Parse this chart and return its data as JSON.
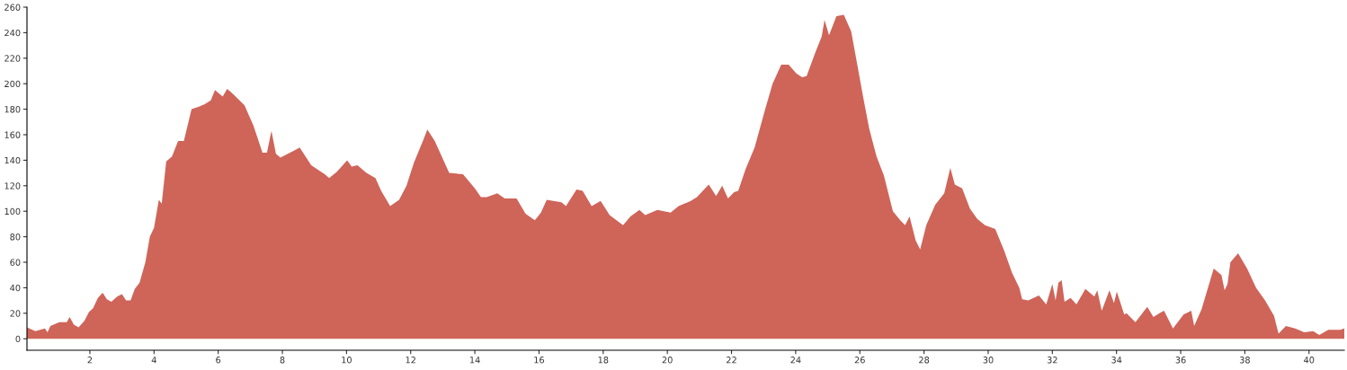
{
  "chart_data": {
    "type": "area",
    "xlim": [
      0.04,
      41.1
    ],
    "ylim": [
      -9,
      260
    ],
    "xticks": [
      2,
      4,
      6,
      8,
      10,
      12,
      14,
      16,
      18,
      20,
      22,
      24,
      26,
      28,
      30,
      32,
      34,
      36,
      38,
      40
    ],
    "yticks": [
      0,
      20,
      40,
      60,
      80,
      100,
      120,
      140,
      160,
      180,
      200,
      220,
      240,
      260
    ],
    "grid": false,
    "series": [
      {
        "color": "#cf6459",
        "x": [
          0.04,
          0.3,
          0.6,
          0.68,
          0.77,
          1.05,
          1.28,
          1.37,
          1.5,
          1.65,
          1.83,
          1.97,
          2.1,
          2.25,
          2.4,
          2.53,
          2.67,
          2.85,
          3.0,
          3.13,
          3.27,
          3.4,
          3.55,
          3.73,
          3.87,
          4.0,
          4.15,
          4.24,
          4.38,
          4.56,
          4.75,
          4.93,
          5.17,
          5.4,
          5.58,
          5.77,
          5.9,
          6.14,
          6.28,
          6.5,
          6.82,
          7.1,
          7.38,
          7.52,
          7.66,
          7.8,
          7.94,
          8.4,
          8.54,
          8.9,
          9.32,
          9.46,
          9.7,
          10.02,
          10.16,
          10.34,
          10.62,
          10.9,
          11.08,
          11.36,
          11.64,
          11.87,
          12.1,
          12.38,
          12.52,
          12.75,
          13.2,
          13.63,
          14.0,
          14.19,
          14.37,
          14.7,
          14.93,
          15.3,
          15.58,
          15.87,
          16.06,
          16.24,
          16.7,
          16.84,
          17.17,
          17.36,
          17.64,
          17.92,
          18.2,
          18.62,
          18.85,
          19.13,
          19.31,
          19.69,
          20.1,
          20.35,
          20.73,
          20.92,
          21.29,
          21.52,
          21.71,
          21.89,
          22.08,
          22.21,
          22.44,
          22.72,
          23.05,
          23.28,
          23.55,
          23.78,
          24.02,
          24.2,
          24.34,
          24.62,
          24.81,
          24.9,
          25.04,
          25.27,
          25.5,
          25.73,
          25.92,
          26.1,
          26.29,
          26.52,
          26.75,
          27.03,
          27.26,
          27.41,
          27.55,
          27.74,
          27.88,
          28.07,
          28.35,
          28.63,
          28.82,
          28.96,
          29.19,
          29.43,
          29.66,
          29.9,
          30.22,
          30.5,
          30.74,
          30.97,
          31.06,
          31.25,
          31.58,
          31.81,
          32.0,
          32.1,
          32.19,
          32.29,
          32.38,
          32.57,
          32.75,
          33.03,
          33.31,
          33.4,
          33.54,
          33.78,
          33.92,
          34.01,
          34.24,
          34.31,
          34.59,
          34.96,
          35.15,
          35.34,
          35.48,
          35.76,
          36.09,
          36.33,
          36.42,
          36.65,
          37.03,
          37.27,
          37.37,
          37.46,
          37.55,
          37.79,
          38.07,
          38.35,
          38.63,
          38.91,
          39.05,
          39.28,
          39.57,
          39.85,
          40.13,
          40.32,
          40.6,
          40.97,
          41.1
        ],
        "values": [
          9,
          6,
          8,
          5,
          10,
          13,
          13,
          17,
          11,
          9,
          14,
          21,
          24,
          32,
          36,
          31,
          29,
          33,
          35,
          30,
          30,
          39,
          44,
          60,
          80,
          87,
          109,
          106,
          139,
          143,
          155,
          155,
          180,
          182,
          184,
          187,
          195,
          190,
          196,
          191,
          183,
          167,
          146,
          146,
          163,
          145,
          142,
          148,
          150,
          136,
          129,
          126,
          131,
          140,
          135,
          136,
          130,
          126,
          116,
          104,
          109,
          120,
          138,
          155,
          164,
          155,
          130,
          129,
          118,
          111,
          111,
          114,
          110,
          110,
          98,
          93,
          99,
          109,
          107,
          104,
          117,
          116,
          104,
          108,
          97,
          89,
          96,
          101,
          97,
          101,
          99,
          104,
          108,
          111,
          121,
          112,
          120,
          110,
          115,
          116,
          133,
          150,
          180,
          200,
          215,
          215,
          208,
          205,
          206,
          225,
          237,
          250,
          238,
          253,
          254,
          241,
          215,
          190,
          165,
          143,
          128,
          100,
          93,
          89,
          96,
          77,
          70,
          89,
          105,
          114,
          134,
          121,
          118,
          102,
          94,
          89,
          86,
          69,
          52,
          40,
          31,
          30,
          34,
          27,
          43,
          30,
          44,
          46,
          29,
          32,
          27,
          39,
          33,
          38,
          22,
          38,
          28,
          37,
          19,
          20,
          13,
          25,
          17,
          20,
          22,
          8,
          19,
          22,
          10,
          23,
          55,
          50,
          38,
          43,
          60,
          67,
          55,
          40,
          30,
          18,
          4,
          10,
          8,
          5,
          6,
          3,
          7,
          7,
          8
        ]
      }
    ]
  }
}
